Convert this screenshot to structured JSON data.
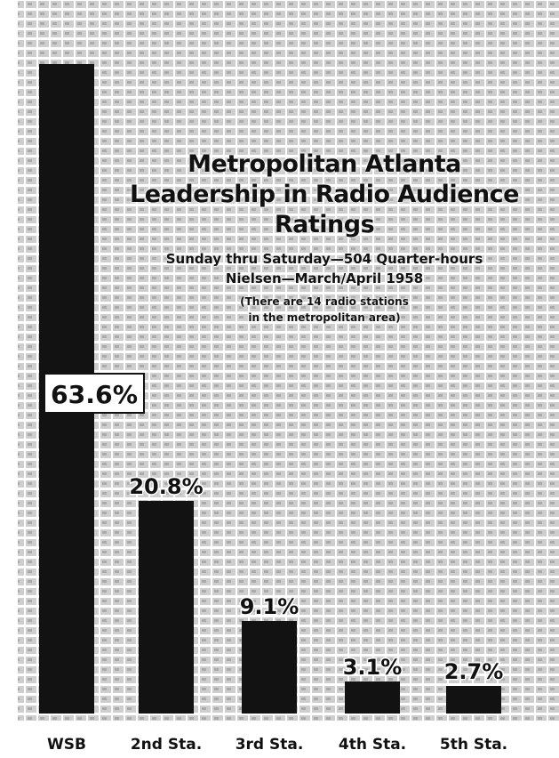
{
  "chart_data": {
    "type": "bar",
    "title": "Metropolitan Atlanta",
    "subtitle": "Leadership in Radio Audience Ratings",
    "subtitle_2": "Sunday thru Saturday—504 Quarter-hours",
    "subtitle_3": "Nielsen—March/April 1958",
    "note_1": "(There are 14 radio stations",
    "note_2": "in the metropolitan area)",
    "categories": [
      "WSB",
      "2nd Sta.",
      "3rd Sta.",
      "4th Sta.",
      "5th Sta."
    ],
    "values": [
      63.6,
      20.8,
      9.1,
      3.1,
      2.7
    ],
    "value_labels": [
      "63.6%",
      "20.8%",
      "9.1%",
      "3.1%",
      "2.7%"
    ],
    "xlabel": "",
    "ylabel": "",
    "ylim": [
      0,
      63.6
    ],
    "grid": false,
    "colors": {
      "bar": "#121212",
      "background": "#ffffff",
      "pattern": "#c9c9c9"
    }
  }
}
